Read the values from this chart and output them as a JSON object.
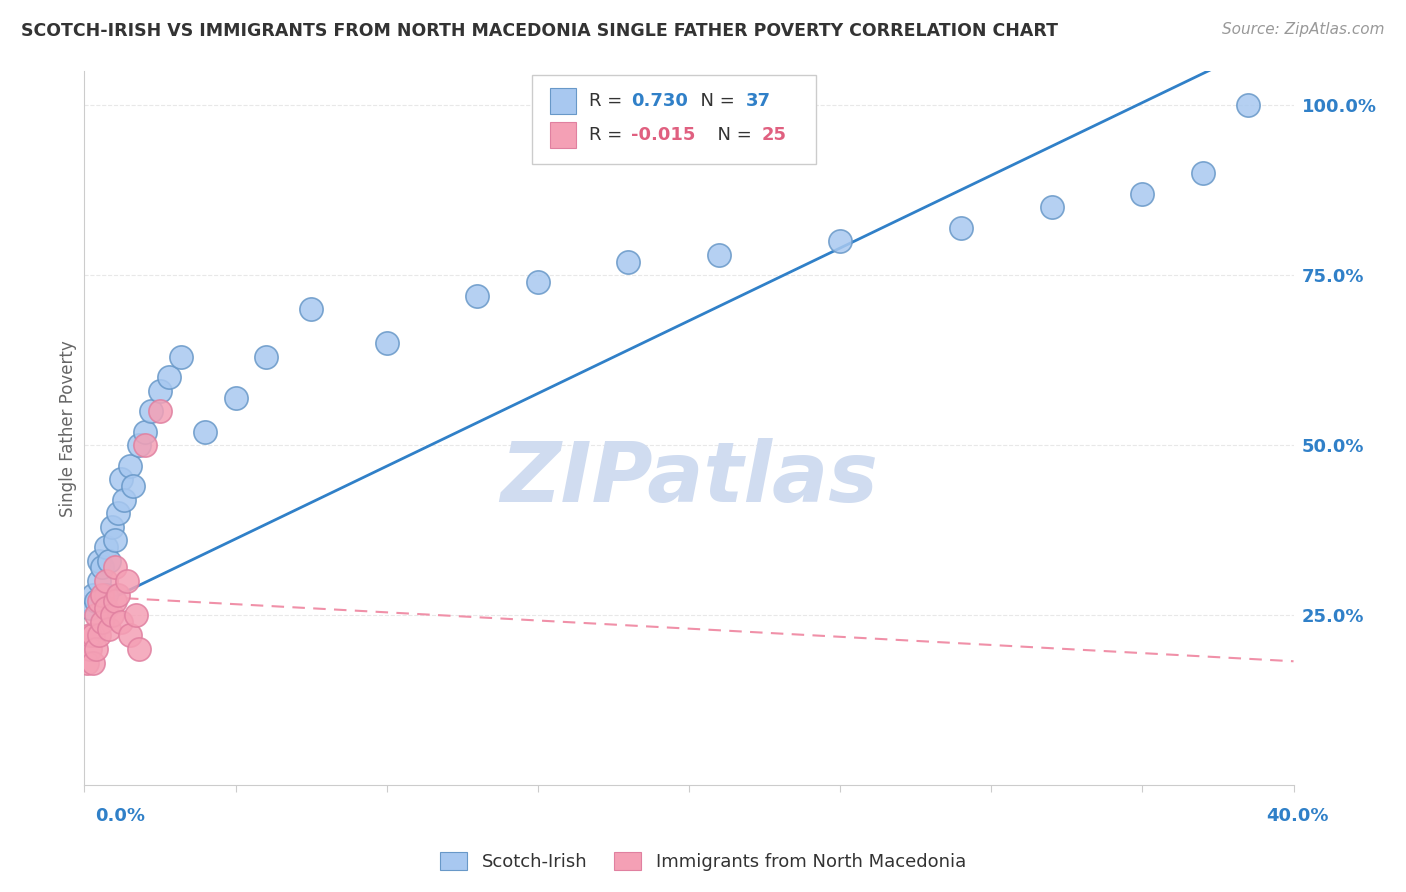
{
  "title": "SCOTCH-IRISH VS IMMIGRANTS FROM NORTH MACEDONIA SINGLE FATHER POVERTY CORRELATION CHART",
  "source": "Source: ZipAtlas.com",
  "ylabel": "Single Father Poverty",
  "ytick_values": [
    0.25,
    0.5,
    0.75,
    1.0
  ],
  "ytick_labels": [
    "25.0%",
    "50.0%",
    "75.0%",
    "100.0%"
  ],
  "xlim": [
    0.0,
    0.4
  ],
  "ylim": [
    0.0,
    1.05
  ],
  "legend_label1": "Scotch-Irish",
  "legend_label2": "Immigrants from North Macedonia",
  "R1": "0.730",
  "N1": "37",
  "R2": "-0.015",
  "N2": "25",
  "blue_dot_color": "#A8C8F0",
  "pink_dot_color": "#F4A0B5",
  "blue_line_color": "#3080C8",
  "pink_line_color": "#F090A8",
  "blue_label_color": "#3080C8",
  "pink_label_color": "#E06080",
  "watermark_color": "#D0DCF0",
  "grid_color": "#E8E8E8",
  "scotch_irish_x": [
    0.002,
    0.003,
    0.004,
    0.005,
    0.005,
    0.006,
    0.007,
    0.007,
    0.008,
    0.009,
    0.01,
    0.011,
    0.012,
    0.013,
    0.015,
    0.016,
    0.018,
    0.02,
    0.022,
    0.025,
    0.028,
    0.032,
    0.04,
    0.05,
    0.06,
    0.075,
    0.1,
    0.13,
    0.15,
    0.18,
    0.21,
    0.25,
    0.29,
    0.32,
    0.35,
    0.37,
    0.385
  ],
  "scotch_irish_y": [
    0.26,
    0.28,
    0.27,
    0.3,
    0.33,
    0.32,
    0.28,
    0.35,
    0.33,
    0.38,
    0.36,
    0.4,
    0.45,
    0.42,
    0.47,
    0.44,
    0.5,
    0.52,
    0.55,
    0.58,
    0.6,
    0.63,
    0.52,
    0.57,
    0.63,
    0.7,
    0.65,
    0.72,
    0.74,
    0.77,
    0.78,
    0.8,
    0.82,
    0.85,
    0.87,
    0.9,
    1.0
  ],
  "north_mac_x": [
    0.001,
    0.002,
    0.002,
    0.003,
    0.003,
    0.004,
    0.004,
    0.005,
    0.005,
    0.006,
    0.006,
    0.007,
    0.007,
    0.008,
    0.009,
    0.01,
    0.01,
    0.011,
    0.012,
    0.014,
    0.015,
    0.017,
    0.018,
    0.02,
    0.025
  ],
  "north_mac_y": [
    0.18,
    0.2,
    0.22,
    0.18,
    0.22,
    0.2,
    0.25,
    0.22,
    0.27,
    0.24,
    0.28,
    0.26,
    0.3,
    0.23,
    0.25,
    0.27,
    0.32,
    0.28,
    0.24,
    0.3,
    0.22,
    0.25,
    0.2,
    0.5,
    0.55
  ]
}
